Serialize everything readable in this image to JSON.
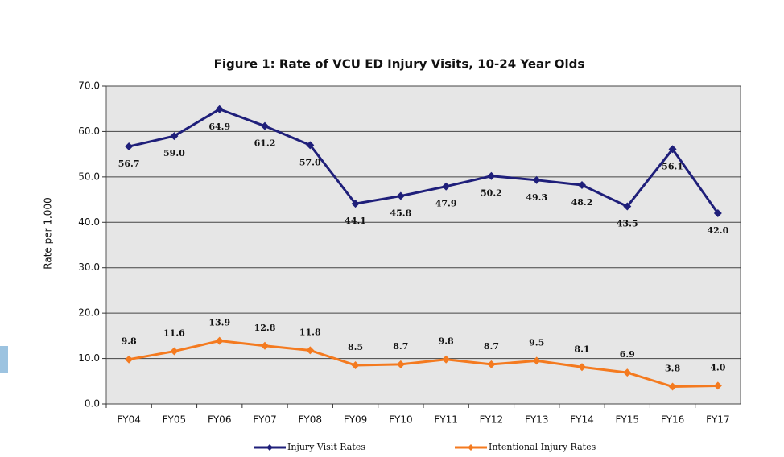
{
  "chart_data": {
    "type": "line",
    "title": "Figure 1: Rate of VCU ED Injury Visits, 10-24 Year Olds",
    "y_label": "Rate per 1,000",
    "categories": [
      "FY04",
      "FY05",
      "FY06",
      "FY07",
      "FY08",
      "FY09",
      "FY10",
      "FY11",
      "FY12",
      "FY13",
      "FY14",
      "FY15",
      "FY16",
      "FY17"
    ],
    "series": [
      {
        "name": "Injury Visit Rates",
        "color": "#1f1f7a",
        "values": [
          56.7,
          59,
          64.9,
          61.2,
          57,
          44.1,
          45.8,
          47.9,
          50.2,
          49.3,
          48.2,
          43.5,
          56.1,
          42
        ],
        "value_labels": [
          "56.7",
          "59.0",
          "64.9",
          "61.2",
          "57.0",
          "44.1",
          "45.8",
          "47.9",
          "50.2",
          "49.3",
          "48.2",
          "43.5",
          "56.1",
          "42.0"
        ]
      },
      {
        "name": "Intentional Injury Rates",
        "color": "#f47a1f",
        "values": [
          9.8,
          11.6,
          13.9,
          12.8,
          11.8,
          8.5,
          8.7,
          9.8,
          8.7,
          9.5,
          8.1,
          6.9,
          3.8,
          4
        ],
        "value_labels": [
          "9.8",
          "11.6",
          "13.9",
          "12.8",
          "11.8",
          "8.5",
          "8.7",
          "9.8",
          "8.7",
          "9.5",
          "8.1",
          "6.9",
          "3.8",
          "4.0"
        ]
      }
    ],
    "ylim": [
      0,
      70
    ],
    "yticks": [
      {
        "value": 0,
        "label": "0.0"
      },
      {
        "value": 10,
        "label": "10.0"
      },
      {
        "value": 20,
        "label": "20.0"
      },
      {
        "value": 30,
        "label": "30.0"
      },
      {
        "value": 40,
        "label": "40.0"
      },
      {
        "value": 50,
        "label": "50.0"
      },
      {
        "value": 60,
        "label": "60.0"
      },
      {
        "value": 70,
        "label": "70.0"
      }
    ],
    "grid": true,
    "legend": "bottom"
  }
}
